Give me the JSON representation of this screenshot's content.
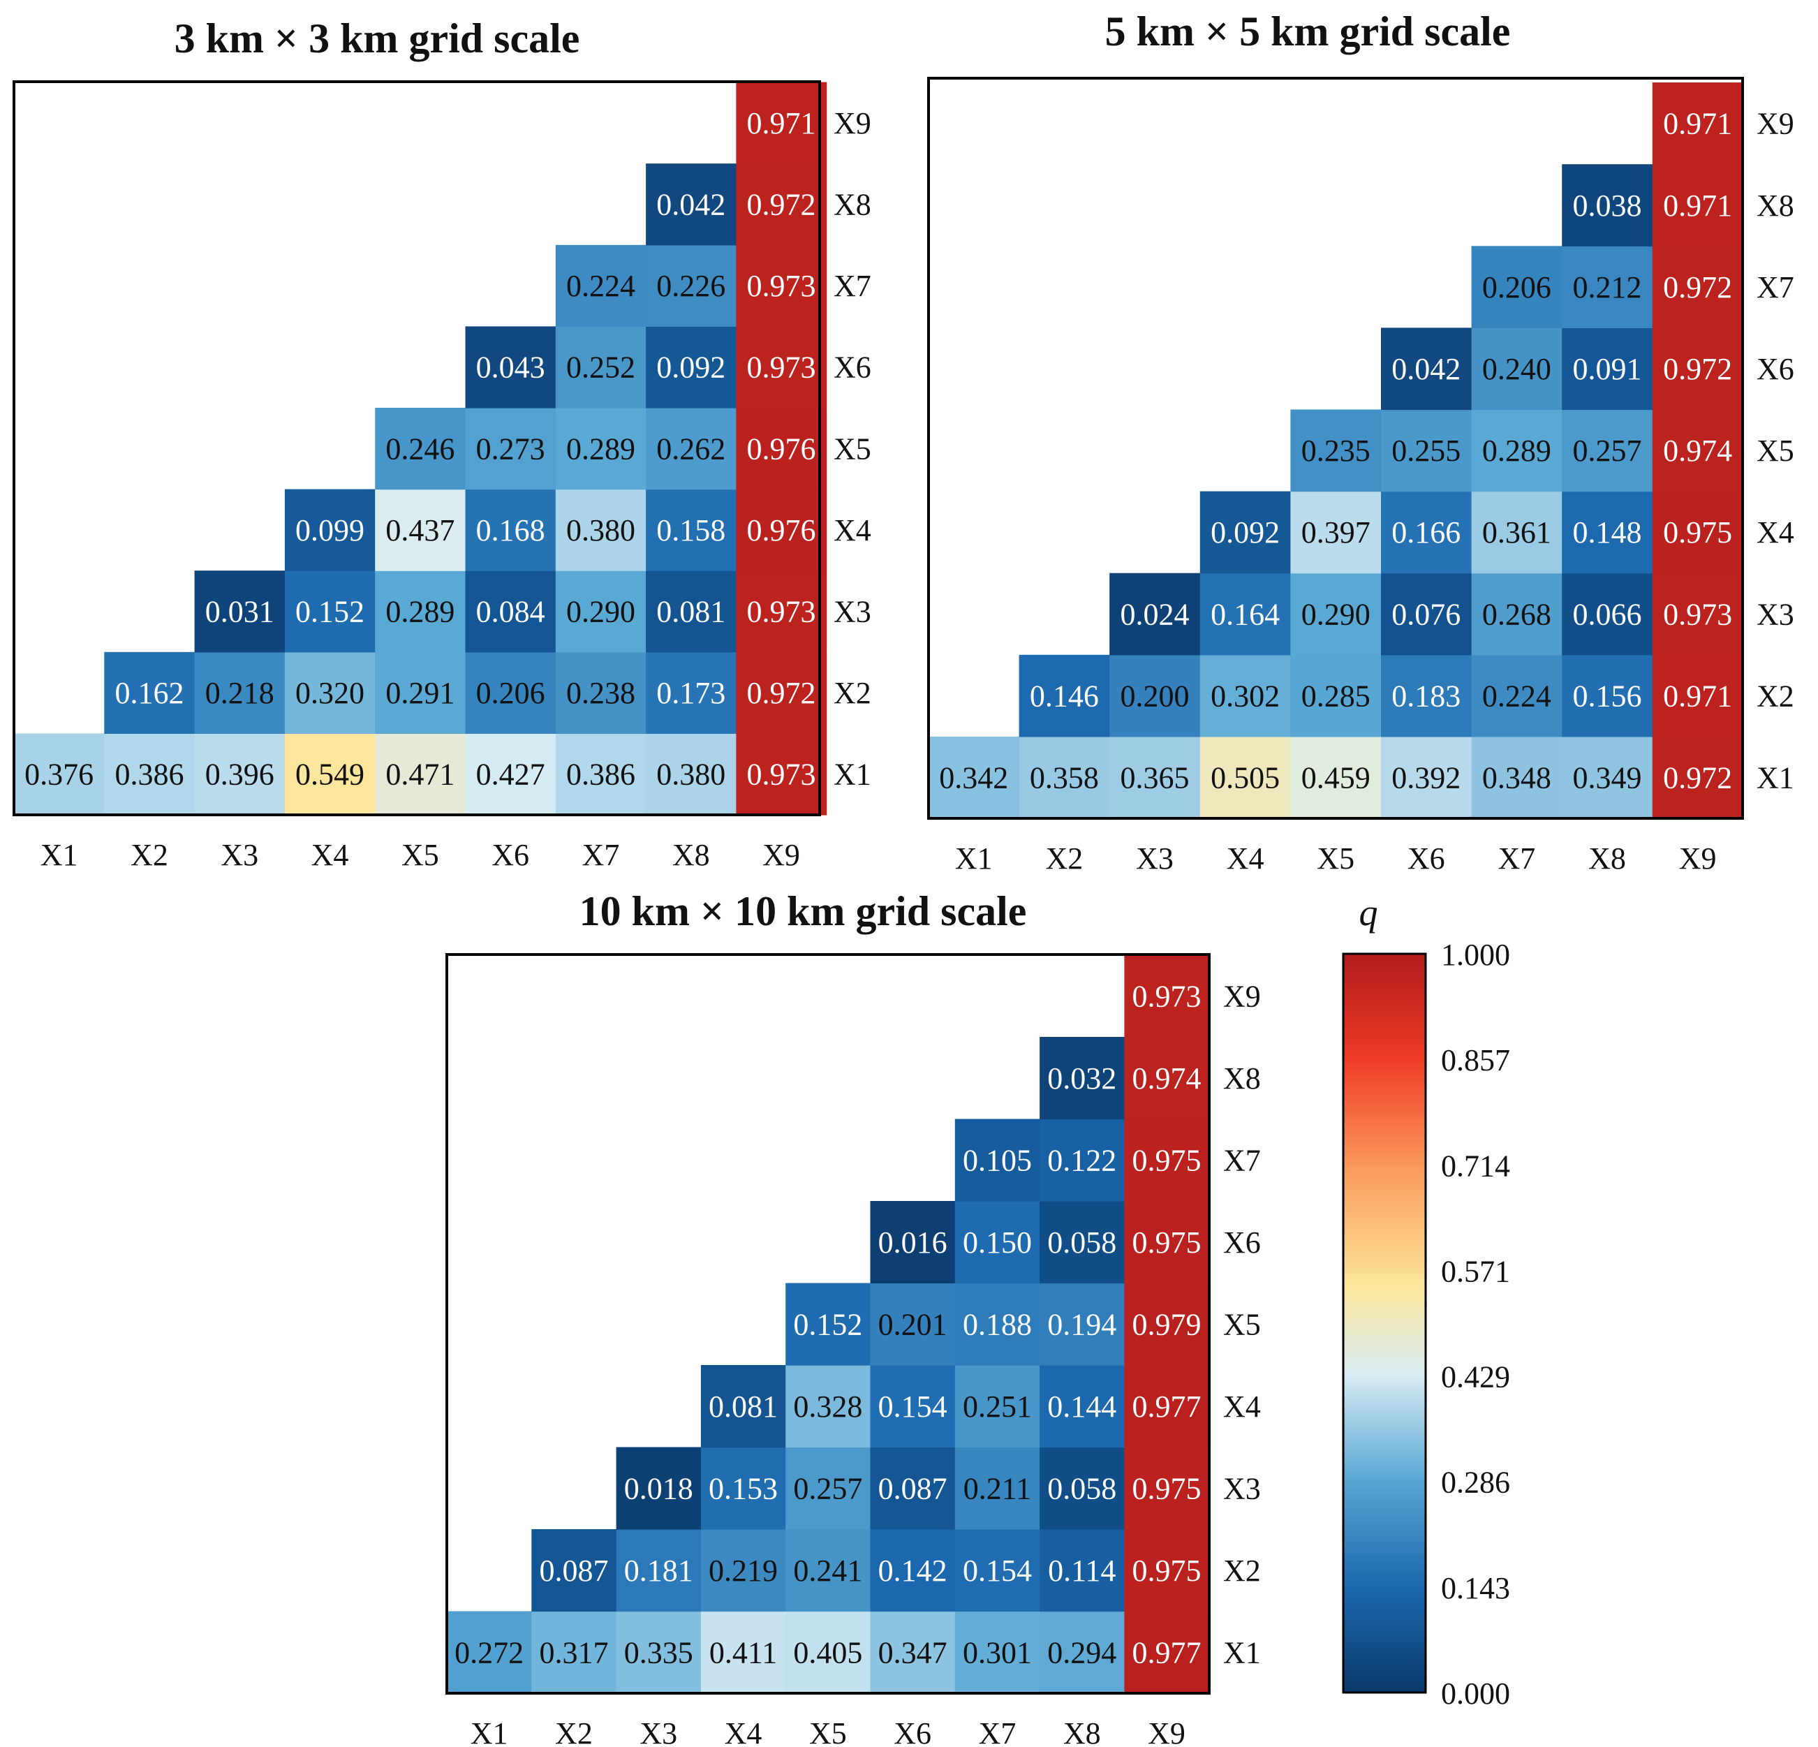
{
  "chart_data": [
    {
      "type": "heatmap",
      "title": "3 km × 3 km grid scale",
      "categories": [
        "X1",
        "X2",
        "X3",
        "X4",
        "X5",
        "X6",
        "X7",
        "X8",
        "X9"
      ],
      "rows": [
        "X1",
        "X2",
        "X3",
        "X4",
        "X5",
        "X6",
        "X7",
        "X8",
        "X9"
      ],
      "values": [
        [
          "0.376",
          "0.386",
          "0.396",
          "0.549",
          "0.471",
          "0.427",
          "0.386",
          "0.380",
          "0.973"
        ],
        [
          null,
          "0.162",
          "0.218",
          "0.320",
          "0.291",
          "0.206",
          "0.238",
          "0.173",
          "0.972"
        ],
        [
          null,
          null,
          "0.031",
          "0.152",
          "0.289",
          "0.084",
          "0.290",
          "0.081",
          "0.973"
        ],
        [
          null,
          null,
          null,
          "0.099",
          "0.437",
          "0.168",
          "0.380",
          "0.158",
          "0.976"
        ],
        [
          null,
          null,
          null,
          null,
          "0.246",
          "0.273",
          "0.289",
          "0.262",
          "0.976"
        ],
        [
          null,
          null,
          null,
          null,
          null,
          "0.043",
          "0.252",
          "0.092",
          "0.973"
        ],
        [
          null,
          null,
          null,
          null,
          null,
          null,
          "0.224",
          "0.226",
          "0.973"
        ],
        [
          null,
          null,
          null,
          null,
          null,
          null,
          null,
          "0.042",
          "0.972"
        ],
        [
          null,
          null,
          null,
          null,
          null,
          null,
          null,
          null,
          "0.971"
        ]
      ]
    },
    {
      "type": "heatmap",
      "title": "5 km × 5 km grid scale",
      "categories": [
        "X1",
        "X2",
        "X3",
        "X4",
        "X5",
        "X6",
        "X7",
        "X8",
        "X9"
      ],
      "rows": [
        "X1",
        "X2",
        "X3",
        "X4",
        "X5",
        "X6",
        "X7",
        "X8",
        "X9"
      ],
      "values": [
        [
          "0.342",
          "0.358",
          "0.365",
          "0.505",
          "0.459",
          "0.392",
          "0.348",
          "0.349",
          "0.972"
        ],
        [
          null,
          "0.146",
          "0.200",
          "0.302",
          "0.285",
          "0.183",
          "0.224",
          "0.156",
          "0.971"
        ],
        [
          null,
          null,
          "0.024",
          "0.164",
          "0.290",
          "0.076",
          "0.268",
          "0.066",
          "0.973"
        ],
        [
          null,
          null,
          null,
          "0.092",
          "0.397",
          "0.166",
          "0.361",
          "0.148",
          "0.975"
        ],
        [
          null,
          null,
          null,
          null,
          "0.235",
          "0.255",
          "0.289",
          "0.257",
          "0.974"
        ],
        [
          null,
          null,
          null,
          null,
          null,
          "0.042",
          "0.240",
          "0.091",
          "0.972"
        ],
        [
          null,
          null,
          null,
          null,
          null,
          null,
          "0.206",
          "0.212",
          "0.972"
        ],
        [
          null,
          null,
          null,
          null,
          null,
          null,
          null,
          "0.038",
          "0.971"
        ],
        [
          null,
          null,
          null,
          null,
          null,
          null,
          null,
          null,
          "0.971"
        ]
      ]
    },
    {
      "type": "heatmap",
      "title": "10 km × 10 km grid scale",
      "categories": [
        "X1",
        "X2",
        "X3",
        "X4",
        "X5",
        "X6",
        "X7",
        "X8",
        "X9"
      ],
      "rows": [
        "X1",
        "X2",
        "X3",
        "X4",
        "X5",
        "X6",
        "X7",
        "X8",
        "X9"
      ],
      "values": [
        [
          "0.272",
          "0.317",
          "0.335",
          "0.411",
          "0.405",
          "0.347",
          "0.301",
          "0.294",
          "0.977"
        ],
        [
          null,
          "0.087",
          "0.181",
          "0.219",
          "0.241",
          "0.142",
          "0.154",
          "0.114",
          "0.975"
        ],
        [
          null,
          null,
          "0.018",
          "0.153",
          "0.257",
          "0.087",
          "0.211",
          "0.058",
          "0.975"
        ],
        [
          null,
          null,
          null,
          "0.081",
          "0.328",
          "0.154",
          "0.251",
          "0.144",
          "0.977"
        ],
        [
          null,
          null,
          null,
          null,
          "0.152",
          "0.201",
          "0.188",
          "0.194",
          "0.979"
        ],
        [
          null,
          null,
          null,
          null,
          null,
          "0.016",
          "0.150",
          "0.058",
          "0.975"
        ],
        [
          null,
          null,
          null,
          null,
          null,
          null,
          "0.105",
          "0.122",
          "0.975"
        ],
        [
          null,
          null,
          null,
          null,
          null,
          null,
          null,
          "0.032",
          "0.974"
        ],
        [
          null,
          null,
          null,
          null,
          null,
          null,
          null,
          null,
          "0.973"
        ]
      ]
    }
  ],
  "colorbar": {
    "label": "q",
    "min": 0,
    "max": 1,
    "ticks": [
      "1.000",
      "0.857",
      "0.714",
      "0.571",
      "0.429",
      "0.286",
      "0.143",
      "0.000"
    ],
    "stops": [
      {
        "v": 0.0,
        "color": "#0b3a6b"
      },
      {
        "v": 0.14,
        "color": "#1a67ad"
      },
      {
        "v": 0.29,
        "color": "#5aa8d4"
      },
      {
        "v": 0.43,
        "color": "#d8ecf4"
      },
      {
        "v": 0.55,
        "color": "#fce69a"
      },
      {
        "v": 0.71,
        "color": "#fb9a5a"
      },
      {
        "v": 0.86,
        "color": "#ee3a26"
      },
      {
        "v": 1.0,
        "color": "#b01c1c"
      }
    ]
  }
}
